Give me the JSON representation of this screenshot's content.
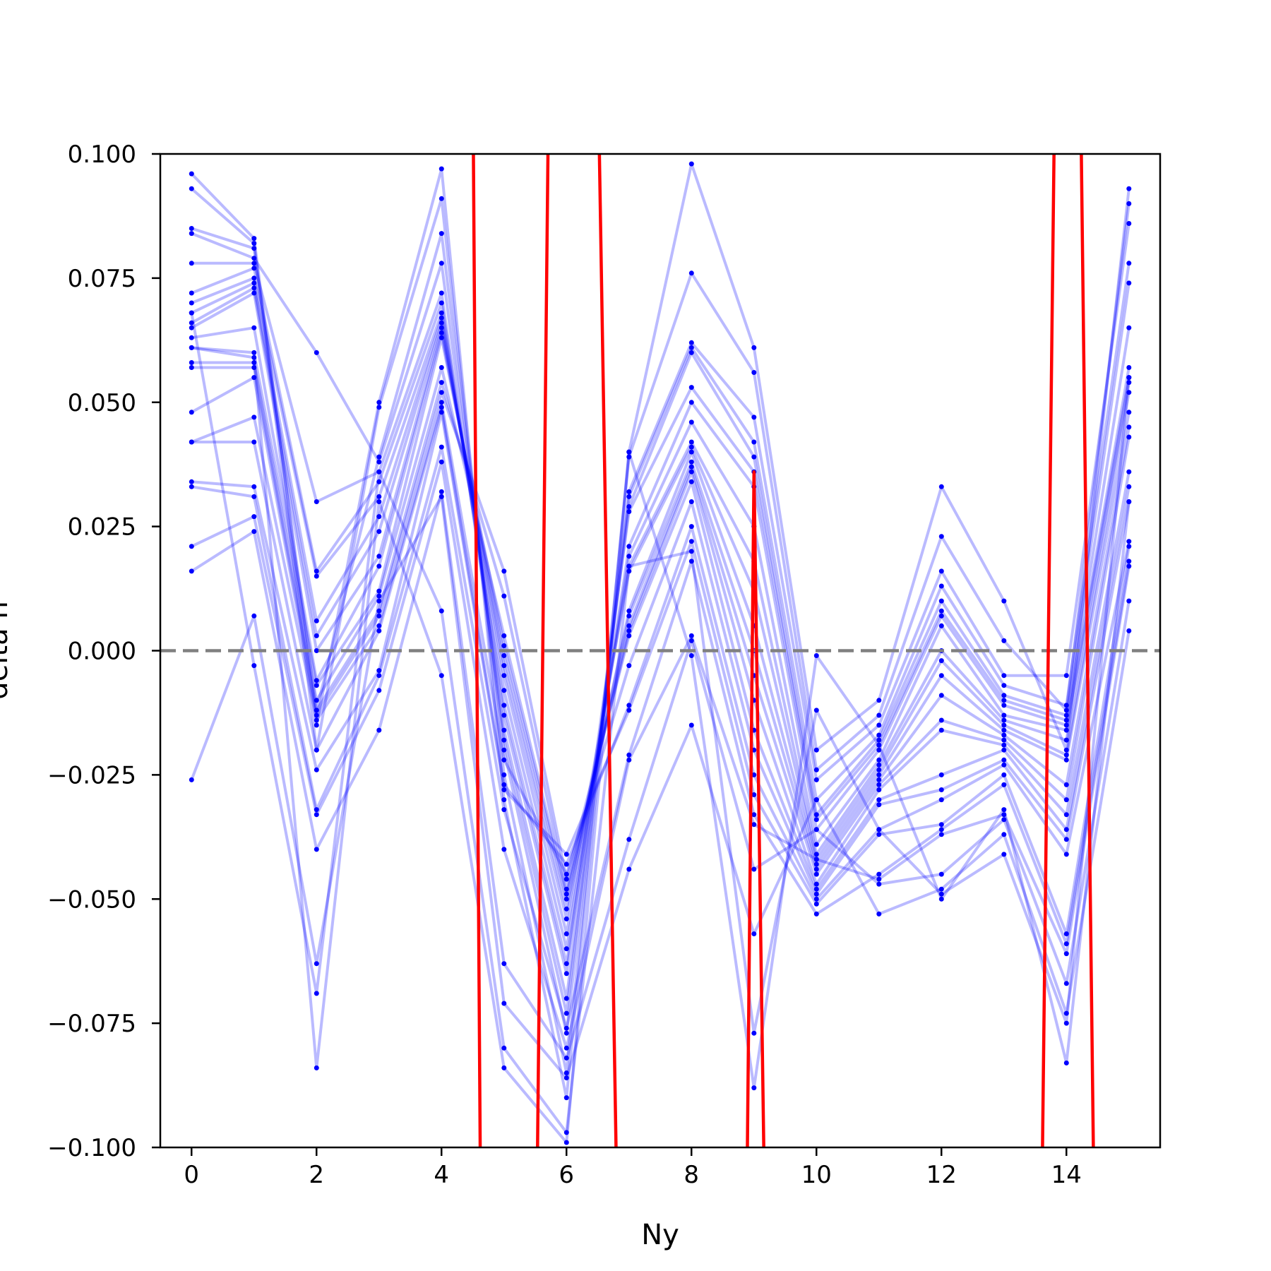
{
  "chart_data": {
    "type": "line",
    "title": "",
    "xlabel": "Ny",
    "ylabel": "delta h",
    "xlim": [
      -0.5,
      15.5
    ],
    "ylim": [
      -0.1,
      0.1
    ],
    "grid": false,
    "legend": "none",
    "x_ticks": [
      0,
      2,
      4,
      6,
      8,
      10,
      12,
      14
    ],
    "x_tick_labels": [
      "0",
      "2",
      "4",
      "6",
      "8",
      "10",
      "12",
      "14"
    ],
    "y_ticks": [
      0.1,
      0.075,
      0.05,
      0.025,
      0.0,
      -0.025,
      -0.05,
      -0.075,
      -0.1
    ],
    "y_tick_labels": [
      "0.100",
      "0.075",
      "0.050",
      "0.025",
      "0.000",
      "−0.025",
      "−0.050",
      "−0.075",
      "−0.100"
    ],
    "reference_line": {
      "y": 0.0,
      "style": "dashed",
      "color": "#808080"
    },
    "x": [
      0,
      1,
      2,
      3,
      4,
      5,
      6,
      7,
      8,
      9,
      10,
      11,
      12,
      13,
      14,
      15
    ],
    "series_style": {
      "sample_color": "#0000ff",
      "sample_line_opacity": 0.27,
      "mean_color": "#ff0000"
    },
    "series": [
      {
        "values": [
          0.096,
          0.083,
          -0.015,
          0.05,
          0.097,
          -0.03,
          -0.09,
          0.04,
          0.098,
          0.061,
          -0.02,
          -0.01,
          0.033,
          0.01,
          -0.02,
          0.093
        ]
      },
      {
        "values": [
          0.093,
          0.082,
          -0.02,
          0.049,
          0.091,
          -0.025,
          -0.085,
          0.039,
          0.076,
          0.056,
          -0.024,
          -0.013,
          0.023,
          0.002,
          -0.012,
          0.09
        ]
      },
      {
        "values": [
          0.085,
          0.081,
          -0.012,
          0.039,
          0.084,
          -0.02,
          -0.077,
          0.032,
          0.062,
          0.047,
          -0.026,
          -0.015,
          0.016,
          -0.005,
          -0.005,
          0.086
        ]
      },
      {
        "values": [
          0.084,
          0.079,
          0.06,
          0.038,
          0.078,
          -0.018,
          -0.073,
          0.031,
          0.061,
          0.042,
          -0.03,
          -0.017,
          0.013,
          -0.007,
          -0.011,
          0.078
        ]
      },
      {
        "values": [
          0.078,
          0.078,
          0.03,
          0.036,
          0.072,
          -0.016,
          -0.07,
          0.029,
          0.06,
          0.039,
          -0.033,
          -0.018,
          0.01,
          -0.009,
          -0.013,
          0.074
        ]
      },
      {
        "values": [
          0.072,
          0.077,
          0.016,
          0.034,
          0.07,
          -0.013,
          -0.065,
          0.028,
          0.053,
          0.036,
          -0.034,
          -0.019,
          0.008,
          -0.01,
          -0.014,
          0.065
        ]
      },
      {
        "values": [
          0.07,
          0.075,
          0.015,
          0.031,
          0.068,
          -0.011,
          -0.063,
          0.021,
          0.05,
          0.033,
          -0.036,
          -0.02,
          0.007,
          -0.011,
          -0.015,
          0.057
        ]
      },
      {
        "values": [
          0.068,
          0.074,
          0.006,
          0.027,
          0.067,
          -0.008,
          -0.06,
          0.019,
          0.046,
          0.025,
          -0.039,
          -0.022,
          0.005,
          -0.013,
          -0.016,
          0.055
        ]
      },
      {
        "values": [
          0.066,
          0.073,
          0.003,
          0.024,
          0.066,
          -0.005,
          -0.057,
          0.017,
          0.042,
          0.018,
          -0.041,
          -0.023,
          0.0,
          -0.014,
          -0.018,
          0.054
        ]
      },
      {
        "values": [
          0.065,
          0.072,
          0.0,
          0.019,
          0.065,
          -0.003,
          -0.054,
          0.016,
          0.041,
          0.012,
          -0.042,
          -0.024,
          -0.002,
          -0.015,
          -0.021,
          0.052
        ]
      },
      {
        "values": [
          0.063,
          0.065,
          -0.006,
          0.017,
          0.064,
          -0.001,
          -0.052,
          0.008,
          0.04,
          0.005,
          -0.043,
          -0.025,
          -0.005,
          -0.016,
          -0.022,
          0.048
        ]
      },
      {
        "values": [
          0.061,
          0.06,
          -0.007,
          0.012,
          0.063,
          0.001,
          -0.05,
          0.007,
          0.038,
          0.0,
          -0.044,
          -0.026,
          -0.009,
          -0.017,
          -0.027,
          0.045
        ]
      },
      {
        "values": [
          0.058,
          0.058,
          -0.01,
          0.011,
          0.057,
          0.003,
          -0.049,
          0.005,
          0.037,
          -0.005,
          -0.045,
          -0.027,
          -0.014,
          -0.018,
          -0.03,
          0.043
        ]
      },
      {
        "values": [
          0.057,
          0.057,
          -0.012,
          0.008,
          0.054,
          0.011,
          -0.048,
          0.004,
          0.036,
          -0.01,
          -0.047,
          -0.028,
          -0.016,
          -0.019,
          -0.033,
          0.036
        ]
      },
      {
        "values": [
          0.048,
          0.055,
          -0.013,
          0.007,
          0.052,
          0.016,
          -0.046,
          0.003,
          0.034,
          -0.016,
          -0.048,
          -0.03,
          -0.025,
          -0.02,
          -0.036,
          0.033
        ]
      },
      {
        "values": [
          0.042,
          0.047,
          -0.014,
          0.005,
          0.05,
          -0.022,
          -0.045,
          -0.003,
          0.03,
          -0.02,
          -0.049,
          -0.031,
          -0.028,
          -0.022,
          -0.038,
          0.03
        ]
      },
      {
        "values": [
          0.042,
          0.042,
          -0.02,
          0.004,
          0.049,
          -0.027,
          -0.043,
          -0.011,
          0.025,
          -0.025,
          -0.05,
          -0.036,
          -0.03,
          -0.023,
          -0.041,
          0.022
        ]
      },
      {
        "values": [
          0.034,
          0.033,
          -0.024,
          -0.004,
          0.048,
          -0.028,
          -0.041,
          -0.012,
          0.022,
          -0.029,
          -0.051,
          -0.037,
          -0.035,
          -0.025,
          -0.057,
          0.021
        ]
      },
      {
        "values": [
          0.033,
          0.031,
          -0.032,
          -0.005,
          0.041,
          -0.032,
          -0.076,
          -0.021,
          0.018,
          -0.033,
          -0.053,
          -0.045,
          -0.036,
          -0.027,
          -0.059,
          0.018
        ]
      },
      {
        "values": [
          0.021,
          0.027,
          -0.033,
          -0.008,
          0.038,
          -0.04,
          -0.08,
          -0.022,
          0.003,
          -0.035,
          -0.042,
          -0.046,
          -0.037,
          -0.033,
          -0.061,
          0.017
        ]
      },
      {
        "values": [
          0.016,
          0.024,
          -0.04,
          -0.016,
          0.032,
          -0.063,
          -0.082,
          -0.038,
          0.002,
          -0.044,
          -0.036,
          -0.047,
          -0.045,
          -0.034,
          -0.067,
          0.01
        ]
      },
      {
        "values": [
          -0.026,
          0.007,
          -0.063,
          0.01,
          0.031,
          -0.071,
          -0.086,
          -0.044,
          -0.015,
          -0.057,
          -0.03,
          -0.053,
          -0.048,
          -0.037,
          -0.073,
          0.004
        ]
      },
      {
        "values": [
          0.068,
          -0.003,
          -0.069,
          0.036,
          0.008,
          -0.08,
          -0.097,
          0.017,
          0.02,
          -0.077,
          -0.012,
          -0.036,
          -0.049,
          -0.041,
          -0.075,
          0.055
        ]
      },
      {
        "values": [
          0.061,
          0.059,
          -0.084,
          0.03,
          -0.005,
          -0.084,
          -0.099,
          0.04,
          -0.001,
          -0.088,
          -0.001,
          -0.019,
          -0.05,
          -0.032,
          -0.083,
          0.03
        ]
      }
    ],
    "mean_series": [
      {
        "x": 4.5,
        "y": 0.12
      },
      {
        "x": 4.63,
        "y": -0.12
      },
      {
        "x": 5.52,
        "y": -0.12
      },
      {
        "x": 5.72,
        "y": 0.12
      },
      {
        "x": 6.5,
        "y": 0.12
      },
      {
        "x": 6.82,
        "y": -0.12
      },
      {
        "x": 8.88,
        "y": -0.12
      },
      {
        "x": 9.0,
        "y": 0.036
      },
      {
        "x": 9.18,
        "y": -0.12
      },
      {
        "x": 13.6,
        "y": -0.12
      },
      {
        "x": 13.82,
        "y": 0.12
      },
      {
        "x": 14.22,
        "y": 0.12
      },
      {
        "x": 14.45,
        "y": -0.12
      }
    ]
  }
}
